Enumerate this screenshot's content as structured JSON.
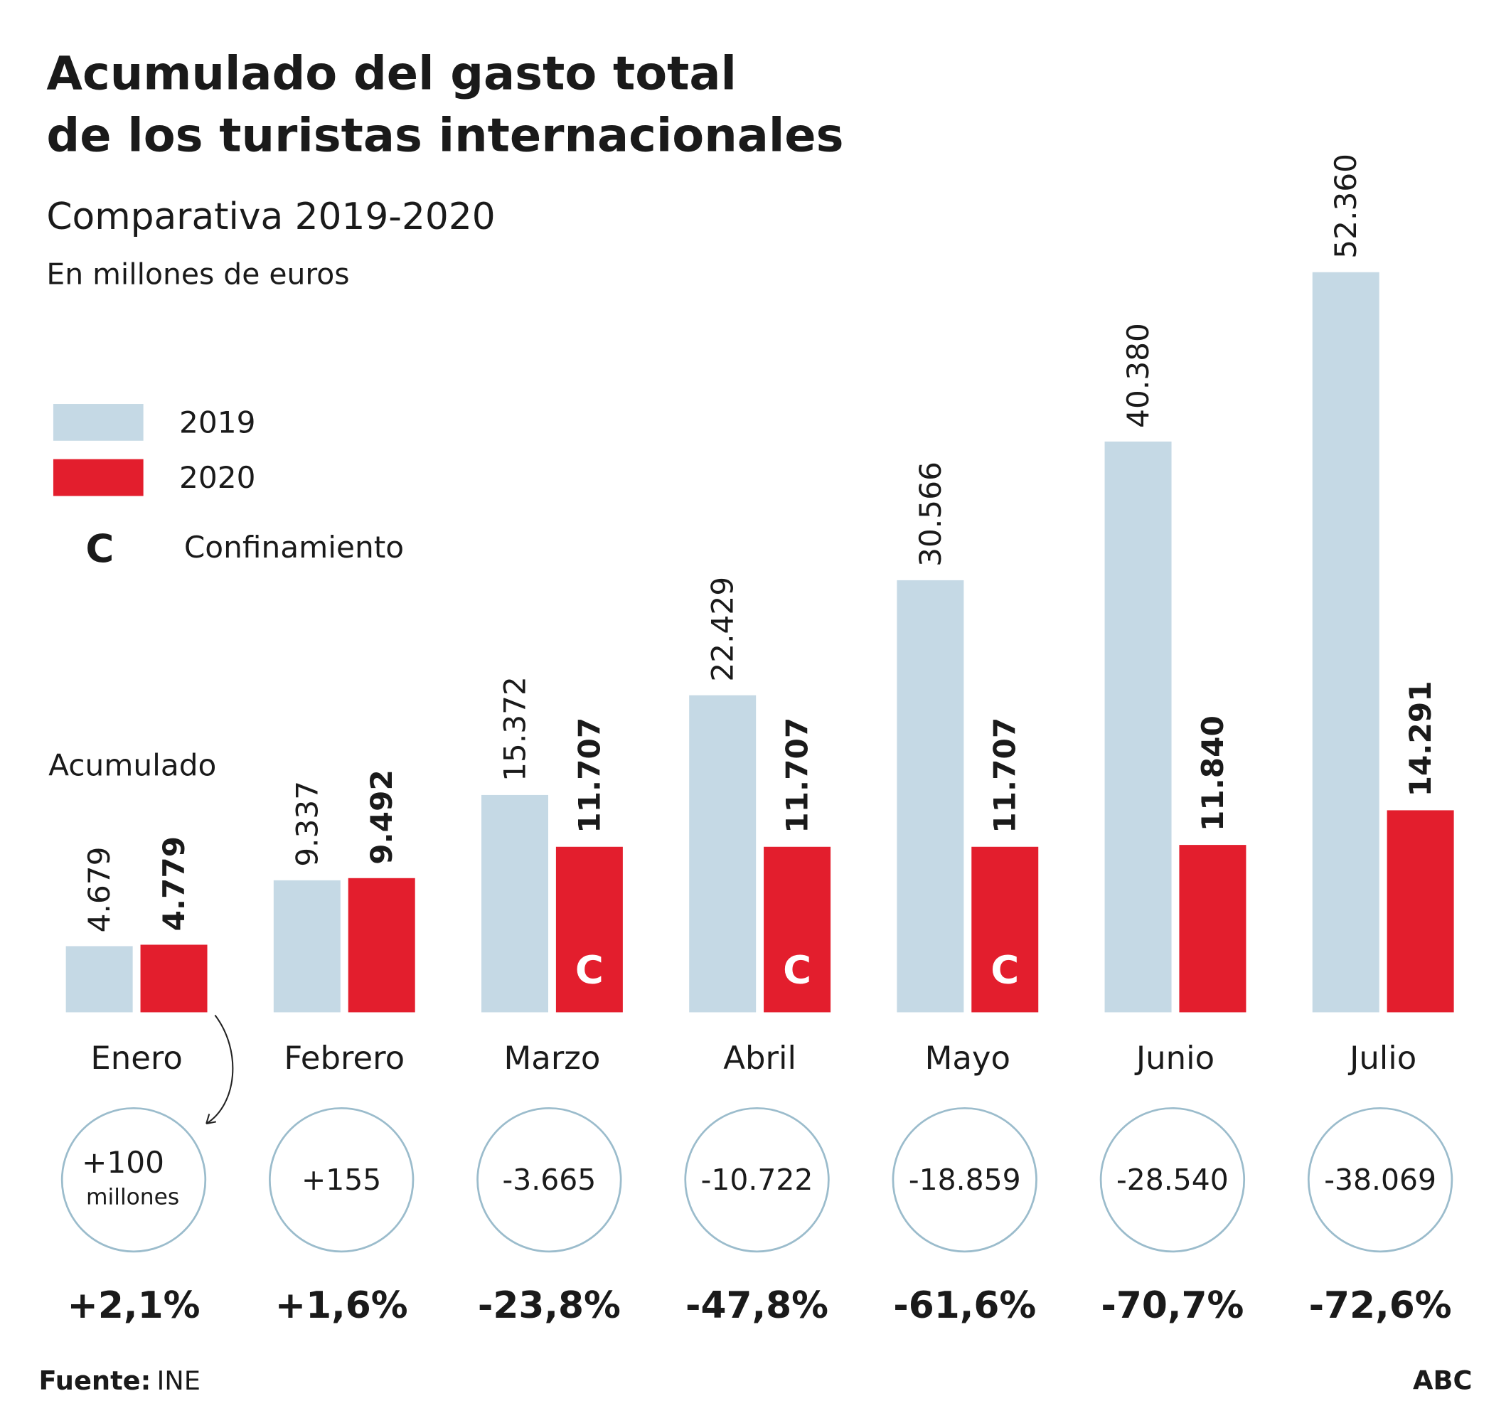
{
  "chart_data": {
    "type": "bar",
    "title": [
      "Acumulado del gasto total",
      "de los turistas internacionales"
    ],
    "subtitle": "Comparativa 2019-2020",
    "unit": "En millones de euros",
    "value_label_heading": "Acumulado",
    "categories": [
      "Enero",
      "Febrero",
      "Marzo",
      "Abril",
      "Mayo",
      "Junio",
      "Julio"
    ],
    "series": [
      {
        "name": "2019",
        "color": "#c5d9e5",
        "values": [
          4679,
          9337,
          15372,
          22429,
          30566,
          40380,
          52360
        ],
        "value_labels": [
          "4.679",
          "9.337",
          "15.372",
          "22.429",
          "30.566",
          "40.380",
          "52.360"
        ]
      },
      {
        "name": "2020",
        "color": "#e31e2d",
        "values": [
          4779,
          9492,
          11707,
          11707,
          11707,
          11840,
          14291
        ],
        "value_labels": [
          "4.779",
          "9.492",
          "11.707",
          "11.707",
          "11.707",
          "11.840",
          "14.291"
        ]
      }
    ],
    "lockdown_mark": "C",
    "lockdown_label": "Confinamiento",
    "lockdown": [
      false,
      false,
      true,
      true,
      true,
      false,
      false
    ],
    "differences": [
      "+100",
      "+155",
      "-3.665",
      "-10.722",
      "-18.859",
      "-28.540",
      "-38.069"
    ],
    "difference_unit": "millones",
    "changes": [
      "+2,1%",
      "+1,6%",
      "-23,8%",
      "-47,8%",
      "-61,6%",
      "-70,7%",
      "-72,6%"
    ],
    "source_label": "Fuente:",
    "source": "INE",
    "publisher": "ABC"
  }
}
